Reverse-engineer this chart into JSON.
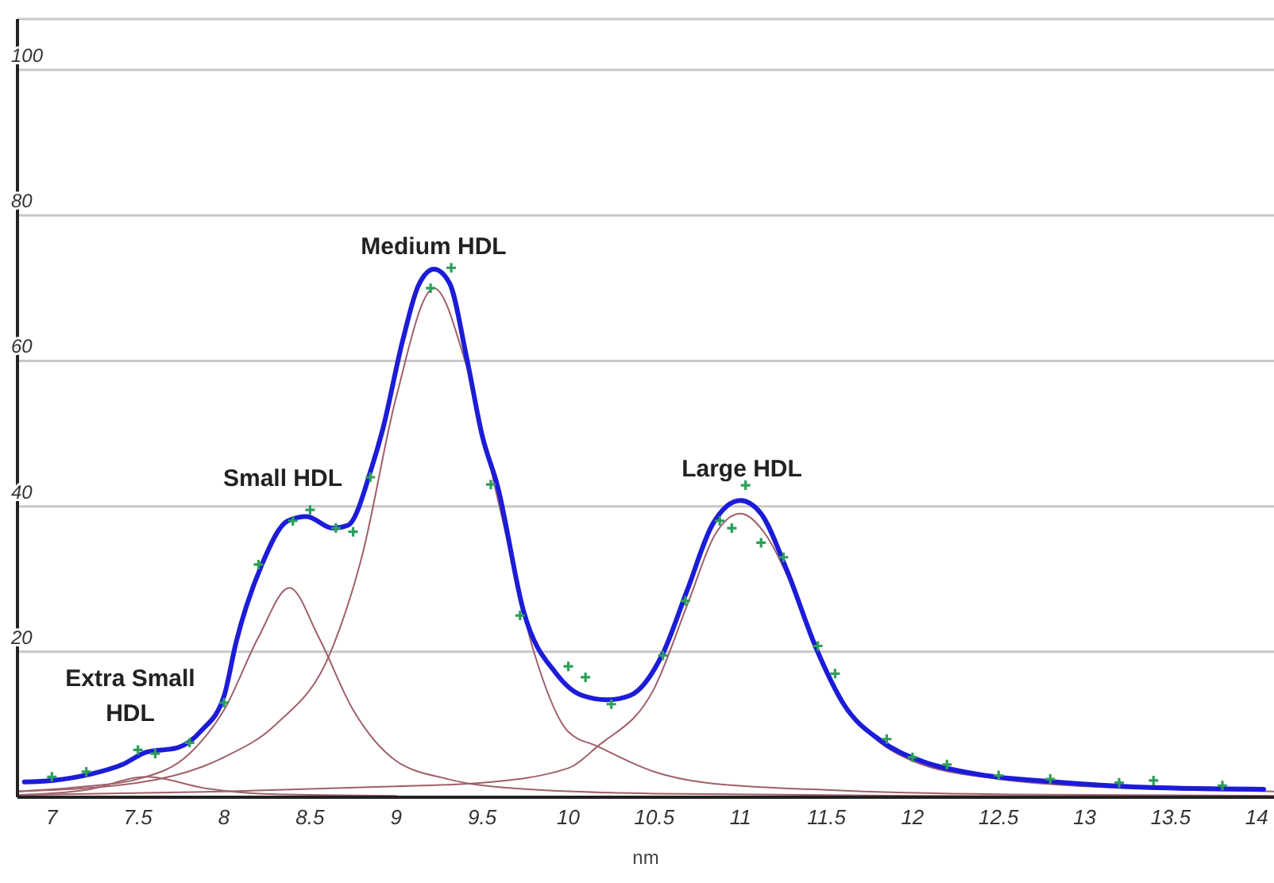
{
  "chart_data": {
    "type": "line",
    "xlabel": "nm",
    "xlim": [
      6.8,
      14.1
    ],
    "xticks": [
      7,
      7.5,
      8,
      8.5,
      9,
      9.5,
      10,
      10.5,
      11,
      11.5,
      12,
      12.5,
      13,
      13.5,
      14
    ],
    "ylim": [
      0,
      107
    ],
    "yticks": [
      20,
      40,
      60,
      80,
      100
    ],
    "grid": "y",
    "series": [
      {
        "color": "#a0606a",
        "x": [
          6.8,
          7.2,
          7.55,
          7.9,
          8.3,
          9.0
        ],
        "values": [
          0.3,
          1,
          2.8,
          1.2,
          0.4,
          0.2
        ]
      },
      {
        "color": "#a0606a",
        "x": [
          6.8,
          7.2,
          7.5,
          7.8,
          8.0,
          8.2,
          8.38,
          8.55,
          8.75,
          9.0,
          9.3,
          9.7,
          10.5,
          12.0,
          14.1
        ],
        "values": [
          0.8,
          1.5,
          2.5,
          6,
          12,
          22,
          28.8,
          22,
          12,
          5,
          2.5,
          1.2,
          0.5,
          0.2,
          0.1
        ]
      },
      {
        "color": "#a0606a",
        "x": [
          6.8,
          7.5,
          8.0,
          8.3,
          8.62,
          8.8,
          9.0,
          9.22,
          9.4,
          9.6,
          9.8,
          10.0,
          10.17,
          10.5,
          10.8,
          11.5,
          12.5,
          14.1
        ],
        "values": [
          0.8,
          2,
          5.5,
          10,
          20,
          33,
          55,
          70,
          60,
          40,
          20,
          9,
          7,
          3.5,
          2,
          1,
          0.4,
          0.2
        ]
      },
      {
        "color": "#a0606a",
        "x": [
          6.8,
          8.0,
          9.0,
          9.5,
          10.0,
          10.17,
          10.5,
          10.7,
          10.85,
          11.0,
          11.15,
          11.3,
          11.5,
          11.7,
          12.0,
          12.5,
          13.0,
          14.1
        ],
        "values": [
          0.3,
          0.8,
          1.5,
          2,
          4,
          7,
          15,
          27,
          36,
          39,
          36,
          29,
          17,
          10,
          5,
          2.5,
          1.5,
          0.8
        ]
      },
      {
        "color": "#1c1cd8",
        "x": [
          6.84,
          7.0,
          7.23,
          7.41,
          7.55,
          7.73,
          7.87,
          8.0,
          8.07,
          8.22,
          8.37,
          8.48,
          8.63,
          8.72,
          8.86,
          8.92,
          9.04,
          9.13,
          9.22,
          9.31,
          9.41,
          9.5,
          9.59,
          9.74,
          9.93,
          10.08,
          10.23,
          10.36,
          10.55,
          10.69,
          10.84,
          11.0,
          11.12,
          11.27,
          11.44,
          11.6,
          11.82,
          12.06,
          12.37,
          12.83,
          13.43,
          14.04
        ],
        "values": [
          2.1,
          2.3,
          3.2,
          4.5,
          6.2,
          6.8,
          9.2,
          13.9,
          21.3,
          32,
          38,
          38.6,
          37,
          37.4,
          45.5,
          50.4,
          63,
          70.4,
          72.6,
          70.7,
          60.4,
          49.7,
          42.7,
          25.6,
          17,
          14,
          13.4,
          14,
          19.8,
          28.4,
          37.6,
          40.8,
          39,
          31.2,
          20.5,
          12.8,
          7.7,
          4.9,
          3.2,
          2.1,
          1.3,
          1.1
        ]
      },
      {
        "type": "scatter",
        "marker": "cross",
        "color": "#2e9e5a",
        "x": [
          7.0,
          7.2,
          7.5,
          7.6,
          7.8,
          8.0,
          8.2,
          8.4,
          8.5,
          8.65,
          8.75,
          8.85,
          9.2,
          9.32,
          9.55,
          9.72,
          10.0,
          10.1,
          10.25,
          10.55,
          10.68,
          10.88,
          10.95,
          11.03,
          11.12,
          11.25,
          11.45,
          11.55,
          11.85,
          12.0,
          12.2,
          12.5,
          12.8,
          13.2,
          13.4,
          13.8
        ],
        "values": [
          2.8,
          3.5,
          6.5,
          6,
          7.5,
          13,
          32,
          38,
          39.5,
          37,
          36.5,
          44,
          70,
          72.8,
          43,
          25,
          18,
          16.5,
          12.8,
          19.5,
          27,
          38,
          37,
          42.9,
          35,
          33,
          20.8,
          17,
          8,
          5.5,
          4.5,
          3,
          2.5,
          2,
          2.3,
          1.6
        ]
      }
    ],
    "annotations": [
      "Extra Small HDL",
      "Small HDL",
      "Medium HDL",
      "Large HDL"
    ]
  }
}
